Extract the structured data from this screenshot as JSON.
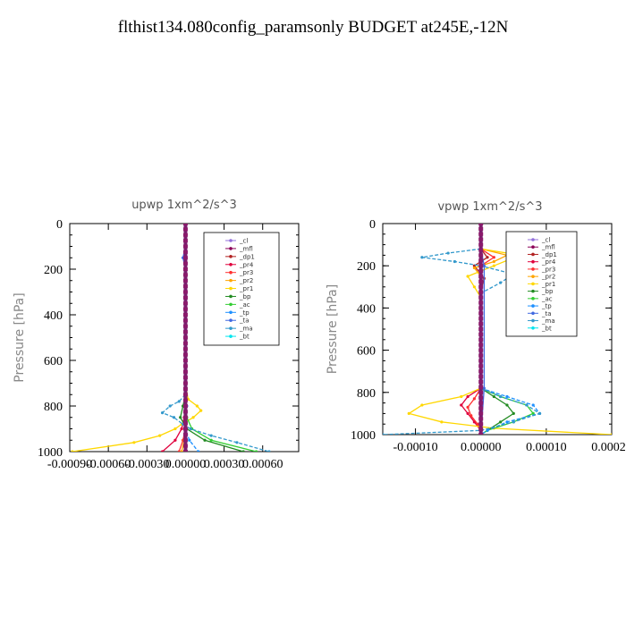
{
  "title": "flthist134.080config_paramsonly  BUDGET at245E,-12N",
  "chart_data": [
    {
      "type": "line",
      "panel_id": "upwp",
      "title": "upwp   1xm^2/s^3",
      "ylabel": "Pressure [hPa]",
      "xlabel": "",
      "ylim": [
        1000,
        0
      ],
      "xlim": [
        -0.0009,
        0.00088
      ],
      "xticks": [
        -0.0009,
        -0.0006,
        -0.0003,
        0.0,
        0.0003,
        0.0006
      ],
      "xtick_labels": [
        "-0.00090",
        "-0.00060",
        "-0.00030",
        "0.00000",
        "0.00030",
        "0.00060"
      ],
      "yticks": [
        0,
        200,
        400,
        600,
        800,
        1000
      ],
      "ytick_labels": [
        "0",
        "200",
        "400",
        "600",
        "800",
        "1000"
      ],
      "legend_position": "top-right",
      "series": [
        {
          "name": "_cl",
          "color": "#9370db",
          "y": [
            100,
            1000
          ],
          "x": [
            0,
            0
          ]
        },
        {
          "name": "_mfl",
          "color": "#8b0057",
          "y": [
            100,
            1000
          ],
          "x": [
            0,
            0
          ]
        },
        {
          "name": "_dp1",
          "color": "#b22222",
          "y": [
            100,
            1000
          ],
          "x": [
            0,
            0
          ]
        },
        {
          "name": "_pr4",
          "color": "#e0003c",
          "y": [
            750,
            800,
            850,
            900,
            950,
            1000
          ],
          "x": [
            0,
            0,
            -1e-05,
            -3e-05,
            -8e-05,
            -0.00018
          ]
        },
        {
          "name": "_pr3",
          "color": "#ff3030",
          "y": [
            750,
            800,
            850,
            900,
            950,
            1000
          ],
          "x": [
            0,
            1e-05,
            0,
            0,
            -2e-05,
            -5e-05
          ]
        },
        {
          "name": "_pr2",
          "color": "#ffa500",
          "y": [
            750,
            800,
            850,
            900,
            950,
            1000
          ],
          "x": [
            0,
            0,
            0,
            0,
            -1e-05,
            -3e-05
          ]
        },
        {
          "name": "_pr1",
          "color": "#ffd700",
          "y": [
            100,
            300,
            700,
            770,
            800,
            820,
            850,
            880,
            900,
            930,
            960,
            1000
          ],
          "x": [
            0,
            0,
            0,
            2e-05,
            9e-05,
            0.00012,
            6e-05,
            -3e-05,
            -8e-05,
            -0.0002,
            -0.0004,
            -0.00088
          ]
        },
        {
          "name": "_bp",
          "color": "#228b22",
          "y": [
            750,
            800,
            850,
            900,
            950,
            1000
          ],
          "x": [
            0,
            -2e-05,
            -4e-05,
            1e-05,
            0.00015,
            0.00045
          ]
        },
        {
          "name": "_ac",
          "color": "#32cd32",
          "y": [
            750,
            800,
            850,
            900,
            950,
            1000
          ],
          "x": [
            0,
            0,
            1e-05,
            5e-05,
            0.0002,
            0.00055
          ]
        },
        {
          "name": "_tp",
          "color": "#1e90ff",
          "y": [
            750,
            800,
            850,
            900,
            950,
            1000
          ],
          "x": [
            0,
            1e-05,
            0,
            0,
            3e-05,
            0.0001
          ]
        },
        {
          "name": "_ta",
          "color": "#4169e1",
          "y": [
            100,
            150,
            200,
            1000
          ],
          "x": [
            0,
            -2e-05,
            0,
            0
          ]
        },
        {
          "name": "_ma",
          "color": "#3399cc",
          "y": [
            750,
            780,
            800,
            830,
            850,
            880,
            900,
            930,
            960,
            1000
          ],
          "x": [
            0,
            -5e-05,
            -0.00012,
            -0.00018,
            -9e-05,
            -2e-05,
            4e-05,
            0.0002,
            0.0004,
            0.00065
          ]
        },
        {
          "name": "_bt",
          "color": "#00e5ee",
          "y": [
            100,
            1000
          ],
          "x": [
            0,
            0
          ]
        }
      ]
    },
    {
      "type": "line",
      "panel_id": "vpwp",
      "title": "vpwp   1xm^2/s^3",
      "ylabel": "Pressure [hPa]",
      "xlabel": "",
      "ylim": [
        1000,
        0
      ],
      "xlim": [
        -0.00015,
        0.0002
      ],
      "xticks": [
        -0.0001,
        0.0,
        0.0001,
        0.0002
      ],
      "xtick_labels": [
        "-0.00010",
        "0.00000",
        "0.00010",
        "0.00020"
      ],
      "yticks": [
        0,
        200,
        400,
        600,
        800,
        1000
      ],
      "ytick_labels": [
        "0",
        "200",
        "400",
        "600",
        "800",
        "1000"
      ],
      "legend_position": "top-right",
      "series": [
        {
          "name": "_cl",
          "color": "#9370db",
          "y": [
            100,
            1000
          ],
          "x": [
            0,
            0
          ]
        },
        {
          "name": "_mfl",
          "color": "#8b0057",
          "y": [
            100,
            1000
          ],
          "x": [
            0,
            0
          ]
        },
        {
          "name": "_dp1",
          "color": "#b22222",
          "y": [
            120,
            160,
            200,
            260,
            320,
            1000
          ],
          "x": [
            0,
            1e-05,
            -1e-05,
            5e-06,
            0,
            0
          ]
        },
        {
          "name": "_pr4",
          "color": "#e0003c",
          "y": [
            780,
            820,
            860,
            900,
            940,
            980,
            1000
          ],
          "x": [
            0,
            -2e-05,
            -3e-05,
            -2e-05,
            -1e-05,
            0,
            0
          ]
        },
        {
          "name": "_pr3",
          "color": "#ff3030",
          "y": [
            120,
            160,
            200,
            780,
            830,
            870,
            910,
            950,
            990
          ],
          "x": [
            0,
            2e-05,
            0,
            0,
            -1e-05,
            -2e-05,
            -1.5e-05,
            -5e-06,
            0
          ]
        },
        {
          "name": "_pr2",
          "color": "#ffa500",
          "y": [
            120,
            150,
            180,
            210,
            250,
            1000
          ],
          "x": [
            0,
            4e-05,
            2e-05,
            -1e-05,
            0,
            0
          ]
        },
        {
          "name": "_pr1",
          "color": "#ffd700",
          "y": [
            120,
            150,
            200,
            250,
            300,
            350,
            780,
            820,
            860,
            900,
            940,
            970,
            1000
          ],
          "x": [
            0,
            6e-05,
            2e-05,
            -2e-05,
            -1e-05,
            0,
            0,
            -3e-05,
            -9e-05,
            -0.00011,
            -6e-05,
            2e-05,
            0.0002
          ]
        },
        {
          "name": "_bp",
          "color": "#228b22",
          "y": [
            780,
            820,
            860,
            900,
            940,
            980,
            1000
          ],
          "x": [
            0,
            2e-05,
            4e-05,
            5e-05,
            3e-05,
            1e-05,
            0
          ]
        },
        {
          "name": "_ac",
          "color": "#32cd32",
          "y": [
            780,
            820,
            860,
            900,
            940,
            980,
            1000
          ],
          "x": [
            0,
            3e-05,
            7e-05,
            8e-05,
            5e-05,
            1e-05,
            0
          ]
        },
        {
          "name": "_tp",
          "color": "#1e90ff",
          "y": [
            780,
            820,
            860,
            900,
            940,
            980,
            1000
          ],
          "x": [
            0,
            4e-05,
            8e-05,
            9e-05,
            4e-05,
            1e-05,
            0
          ]
        },
        {
          "name": "_ta",
          "color": "#4169e1",
          "y": [
            120,
            200,
            780,
            1000
          ],
          "x": [
            0,
            5e-06,
            5e-06,
            0
          ]
        },
        {
          "name": "_ma",
          "color": "#3399cc",
          "y": [
            120,
            140,
            160,
            180,
            200,
            240,
            280,
            330,
            360,
            780,
            820,
            860,
            900,
            940,
            980,
            1000
          ],
          "x": [
            0,
            -5e-05,
            -9e-05,
            -4e-05,
            0,
            5e-05,
            3e-05,
            0,
            0,
            0,
            3e-05,
            7e-05,
            9e-05,
            5e-05,
            0,
            -0.00015
          ]
        },
        {
          "name": "_bt",
          "color": "#00e5ee",
          "y": [
            100,
            1000
          ],
          "x": [
            0,
            0
          ]
        }
      ]
    }
  ]
}
